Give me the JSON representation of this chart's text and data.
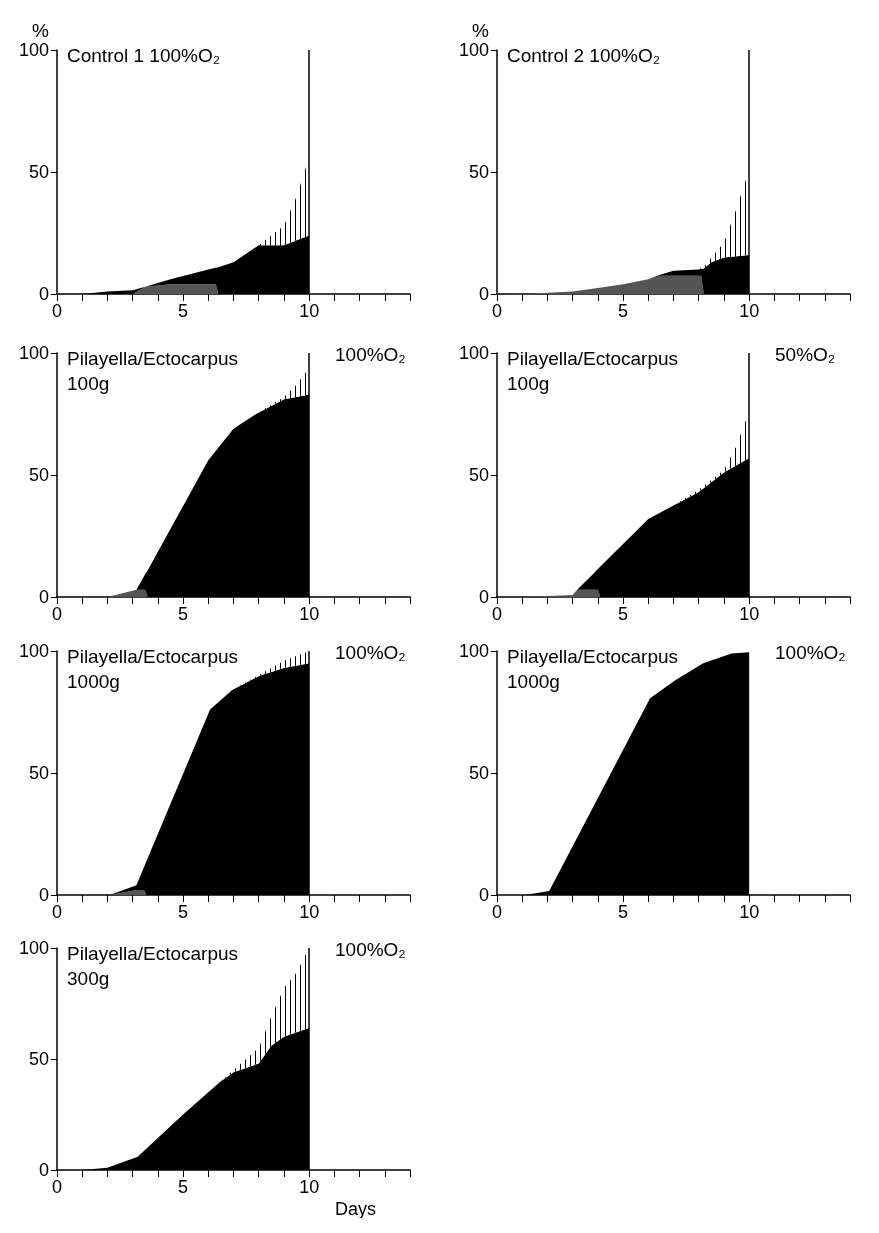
{
  "chart_data": [
    {
      "type": "area",
      "stacked": true,
      "title": "Control 1 100%O₂",
      "ylabel": "%",
      "x": [
        0,
        1,
        2,
        3,
        3.5,
        4.5,
        6,
        6.3,
        6.4,
        7,
        8,
        8.5,
        9,
        9.5,
        10
      ],
      "series": [
        {
          "color": "#555555",
          "values": [
            0,
            0,
            0,
            0,
            3,
            4,
            4,
            4,
            0,
            0,
            0,
            0,
            0,
            0,
            0
          ]
        },
        {
          "color": "#000000",
          "values": [
            0,
            0,
            1,
            1.5,
            0,
            2,
            6,
            6.8,
            11,
            13,
            20,
            20,
            20,
            22,
            24
          ]
        },
        {
          "color": "#ffffff",
          "values": [
            0,
            0,
            0,
            0,
            0,
            0,
            0,
            0,
            0,
            0,
            0,
            4,
            8,
            18,
            32
          ]
        }
      ],
      "xlim": [
        0,
        14
      ],
      "xticks": [
        0,
        {
          "value": 1,
          "label": null
        },
        {
          "value": 2,
          "label": null
        },
        {
          "value": 3,
          "label": null
        },
        {
          "value": 4,
          "label": null
        },
        5,
        {
          "value": 6,
          "label": null
        },
        {
          "value": 7,
          "label": null
        },
        {
          "value": 8,
          "label": null
        },
        {
          "value": 9,
          "label": null
        },
        10,
        {
          "value": 11,
          "label": null
        },
        {
          "value": 12,
          "label": null
        },
        {
          "value": 13,
          "label": null
        },
        {
          "value": 14,
          "label": null
        }
      ],
      "ylim": [
        0,
        100
      ],
      "yticks": [
        0,
        50,
        100
      ],
      "ref_lines": [
        {
          "axis": "x",
          "value": 10,
          "color": "#000000"
        }
      ]
    },
    {
      "type": "area",
      "stacked": true,
      "title": "Control 2 100%O₂",
      "ylabel": "%",
      "x": [
        0,
        1,
        2,
        3,
        4,
        5,
        6,
        6.5,
        7,
        8,
        8.1,
        8.2,
        8.5,
        9,
        9.5,
        10
      ],
      "series": [
        {
          "color": "#555555",
          "values": [
            0,
            0,
            0.5,
            1,
            2.5,
            4,
            6,
            7.5,
            7.5,
            7.5,
            7.5,
            0,
            0,
            0,
            0,
            0
          ]
        },
        {
          "color": "#000000",
          "values": [
            0,
            0,
            0,
            0,
            0,
            0,
            0,
            0.5,
            2,
            2.5,
            2.8,
            10.5,
            13,
            15,
            15.5,
            16
          ]
        },
        {
          "color": "#ffffff",
          "values": [
            0,
            0,
            0,
            0,
            0,
            0,
            0,
            0,
            0,
            0,
            0.5,
            0.5,
            2,
            6,
            19.5,
            35
          ]
        }
      ],
      "xlim": [
        0,
        14
      ],
      "xticks": [
        0,
        {
          "value": 1,
          "label": null
        },
        {
          "value": 2,
          "label": null
        },
        {
          "value": 3,
          "label": null
        },
        {
          "value": 4,
          "label": null
        },
        5,
        {
          "value": 6,
          "label": null
        },
        {
          "value": 7,
          "label": null
        },
        {
          "value": 8,
          "label": null
        },
        {
          "value": 9,
          "label": null
        },
        10,
        {
          "value": 11,
          "label": null
        },
        {
          "value": 12,
          "label": null
        },
        {
          "value": 13,
          "label": null
        },
        {
          "value": 14,
          "label": null
        }
      ],
      "ylim": [
        0,
        100
      ],
      "yticks": [
        0,
        50,
        100
      ],
      "ref_lines": [
        {
          "axis": "x",
          "value": 10,
          "color": "#000000"
        }
      ]
    },
    {
      "type": "area",
      "stacked": true,
      "title": "Pilayella/Ectocarpus",
      "subtitle": "100g",
      "annotations": [
        "100%O₂"
      ],
      "x": [
        0,
        2,
        3.15,
        3.5,
        3.6,
        4.4,
        6,
        7,
        7.9,
        9,
        9.5,
        10
      ],
      "series": [
        {
          "color": "#555555",
          "values": [
            0,
            0,
            3,
            3,
            0,
            0,
            0,
            0,
            0,
            0,
            0,
            0
          ]
        },
        {
          "color": "#000000",
          "values": [
            0,
            0,
            0,
            6.4,
            11,
            26,
            56,
            69,
            75,
            81,
            82,
            83
          ]
        },
        {
          "color": "#ffffff",
          "values": [
            0,
            0,
            0,
            0,
            0,
            0,
            0,
            0,
            0,
            1,
            5,
            11
          ]
        }
      ],
      "xlim": [
        0,
        14
      ],
      "xticks": [
        0,
        {
          "value": 1,
          "label": null
        },
        {
          "value": 2,
          "label": null
        },
        {
          "value": 3,
          "label": null
        },
        {
          "value": 4,
          "label": null
        },
        5,
        {
          "value": 6,
          "label": null
        },
        {
          "value": 7,
          "label": null
        },
        {
          "value": 8,
          "label": null
        },
        {
          "value": 9,
          "label": null
        },
        10,
        {
          "value": 11,
          "label": null
        },
        {
          "value": 12,
          "label": null
        },
        {
          "value": 13,
          "label": null
        },
        {
          "value": 14,
          "label": null
        }
      ],
      "ylim": [
        0,
        100
      ],
      "yticks": [
        0,
        50,
        100
      ],
      "ref_lines": [
        {
          "axis": "x",
          "value": 10,
          "color": "#000000"
        }
      ]
    },
    {
      "type": "area",
      "stacked": true,
      "title": "Pilayella/Ectocarpus",
      "subtitle": "100g",
      "annotations": [
        "50%O₂"
      ],
      "x": [
        0,
        1,
        3,
        3.2,
        3.8,
        4,
        4.1,
        6,
        7,
        8,
        9,
        9.5,
        10
      ],
      "series": [
        {
          "color": "#555555",
          "values": [
            0,
            0,
            0.8,
            3,
            3,
            3,
            0,
            0,
            0,
            0,
            0,
            0,
            0
          ]
        },
        {
          "color": "#000000",
          "values": [
            0,
            0,
            0,
            0.2,
            6.3,
            8.5,
            12.5,
            32,
            37.5,
            43,
            51,
            54,
            57
          ]
        },
        {
          "color": "#ffffff",
          "values": [
            0,
            0,
            0,
            0,
            0,
            0,
            0,
            0,
            0,
            1,
            1,
            8,
            19
          ]
        }
      ],
      "xlim": [
        0,
        14
      ],
      "xticks": [
        0,
        {
          "value": 1,
          "label": null
        },
        {
          "value": 2,
          "label": null
        },
        {
          "value": 3,
          "label": null
        },
        {
          "value": 4,
          "label": null
        },
        5,
        {
          "value": 6,
          "label": null
        },
        {
          "value": 7,
          "label": null
        },
        {
          "value": 8,
          "label": null
        },
        {
          "value": 9,
          "label": null
        },
        10,
        {
          "value": 11,
          "label": null
        },
        {
          "value": 12,
          "label": null
        },
        {
          "value": 13,
          "label": null
        },
        {
          "value": 14,
          "label": null
        }
      ],
      "ylim": [
        0,
        100
      ],
      "yticks": [
        0,
        50,
        100
      ],
      "ref_lines": [
        {
          "axis": "x",
          "value": 10,
          "color": "#000000"
        }
      ]
    },
    {
      "type": "area",
      "stacked": true,
      "title": "Pilayella/Ectocarpus",
      "subtitle": "1000g",
      "annotations": [
        "100%O₂"
      ],
      "x": [
        0,
        2.1,
        3.15,
        3.45,
        3.55,
        6.07,
        6.95,
        8.06,
        9,
        10
      ],
      "series": [
        {
          "color": "#555555",
          "values": [
            0,
            0,
            2,
            2,
            0,
            0,
            0,
            0,
            0,
            0
          ]
        },
        {
          "color": "#000000",
          "values": [
            0,
            0,
            2,
            9.4,
            13.9,
            76,
            84,
            90,
            93,
            95
          ]
        },
        {
          "color": "#ffffff",
          "values": [
            0,
            0,
            0,
            0,
            0,
            0,
            0,
            0.5,
            3,
            5
          ]
        }
      ],
      "xlim": [
        0,
        14
      ],
      "xticks": [
        0,
        {
          "value": 1,
          "label": null
        },
        {
          "value": 2,
          "label": null
        },
        {
          "value": 3,
          "label": null
        },
        {
          "value": 4,
          "label": null
        },
        5,
        {
          "value": 6,
          "label": null
        },
        {
          "value": 7,
          "label": null
        },
        {
          "value": 8,
          "label": null
        },
        {
          "value": 9,
          "label": null
        },
        10,
        {
          "value": 11,
          "label": null
        },
        {
          "value": 12,
          "label": null
        },
        {
          "value": 13,
          "label": null
        },
        {
          "value": 14,
          "label": null
        }
      ],
      "ylim": [
        0,
        100
      ],
      "yticks": [
        0,
        50,
        100
      ],
      "ref_lines": [
        {
          "axis": "x",
          "value": 10,
          "color": "#000000"
        }
      ]
    },
    {
      "type": "area",
      "stacked": true,
      "title": "Pilayella/Ectocarpus",
      "subtitle": "1000g",
      "annotations": [
        "100%O₂"
      ],
      "x": [
        0,
        1.1,
        2.07,
        6.07,
        7.07,
        8.18,
        9.3,
        10
      ],
      "series": [
        {
          "color": "#000000",
          "values": [
            0,
            0,
            1.6,
            80.6,
            88,
            95,
            99,
            99.5
          ]
        }
      ],
      "xlim": [
        0,
        14
      ],
      "xticks": [
        0,
        {
          "value": 1,
          "label": null
        },
        {
          "value": 2,
          "label": null
        },
        {
          "value": 3,
          "label": null
        },
        {
          "value": 4,
          "label": null
        },
        5,
        {
          "value": 6,
          "label": null
        },
        {
          "value": 7,
          "label": null
        },
        {
          "value": 8,
          "label": null
        },
        {
          "value": 9,
          "label": null
        },
        10,
        {
          "value": 11,
          "label": null
        },
        {
          "value": 12,
          "label": null
        },
        {
          "value": 13,
          "label": null
        },
        {
          "value": 14,
          "label": null
        }
      ],
      "ylim": [
        0,
        100
      ],
      "yticks": [
        0,
        50,
        100
      ]
    },
    {
      "type": "area",
      "stacked": true,
      "title": "Pilayella/Ectocarpus",
      "subtitle": "300g",
      "annotations": [
        "100%O₂"
      ],
      "xlabel": "Days",
      "x": [
        0,
        1,
        2,
        3.2,
        5,
        6,
        6.5,
        7,
        7.5,
        8,
        8.5,
        9,
        9.5,
        10
      ],
      "series": [
        {
          "color": "#000000",
          "values": [
            0,
            0,
            1,
            6,
            25,
            35,
            40,
            44,
            46,
            48,
            56,
            60,
            62,
            64
          ]
        },
        {
          "color": "#ffffff",
          "values": [
            0,
            0,
            0,
            0,
            0,
            0,
            0,
            1,
            4,
            7,
            13,
            22,
            27,
            36
          ]
        }
      ],
      "xlim": [
        0,
        14
      ],
      "xticks": [
        0,
        {
          "value": 1,
          "label": null
        },
        {
          "value": 2,
          "label": null
        },
        {
          "value": 3,
          "label": null
        },
        {
          "value": 4,
          "label": null
        },
        5,
        {
          "value": 6,
          "label": null
        },
        {
          "value": 7,
          "label": null
        },
        {
          "value": 8,
          "label": null
        },
        {
          "value": 9,
          "label": null
        },
        10,
        {
          "value": 11,
          "label": null
        },
        {
          "value": 12,
          "label": null
        },
        {
          "value": 13,
          "label": null
        },
        {
          "value": 14,
          "label": null
        }
      ],
      "ylim": [
        0,
        100
      ],
      "yticks": [
        0,
        50,
        100
      ],
      "ref_lines": [
        {
          "axis": "x",
          "value": 10,
          "color": "#000000"
        }
      ]
    }
  ]
}
